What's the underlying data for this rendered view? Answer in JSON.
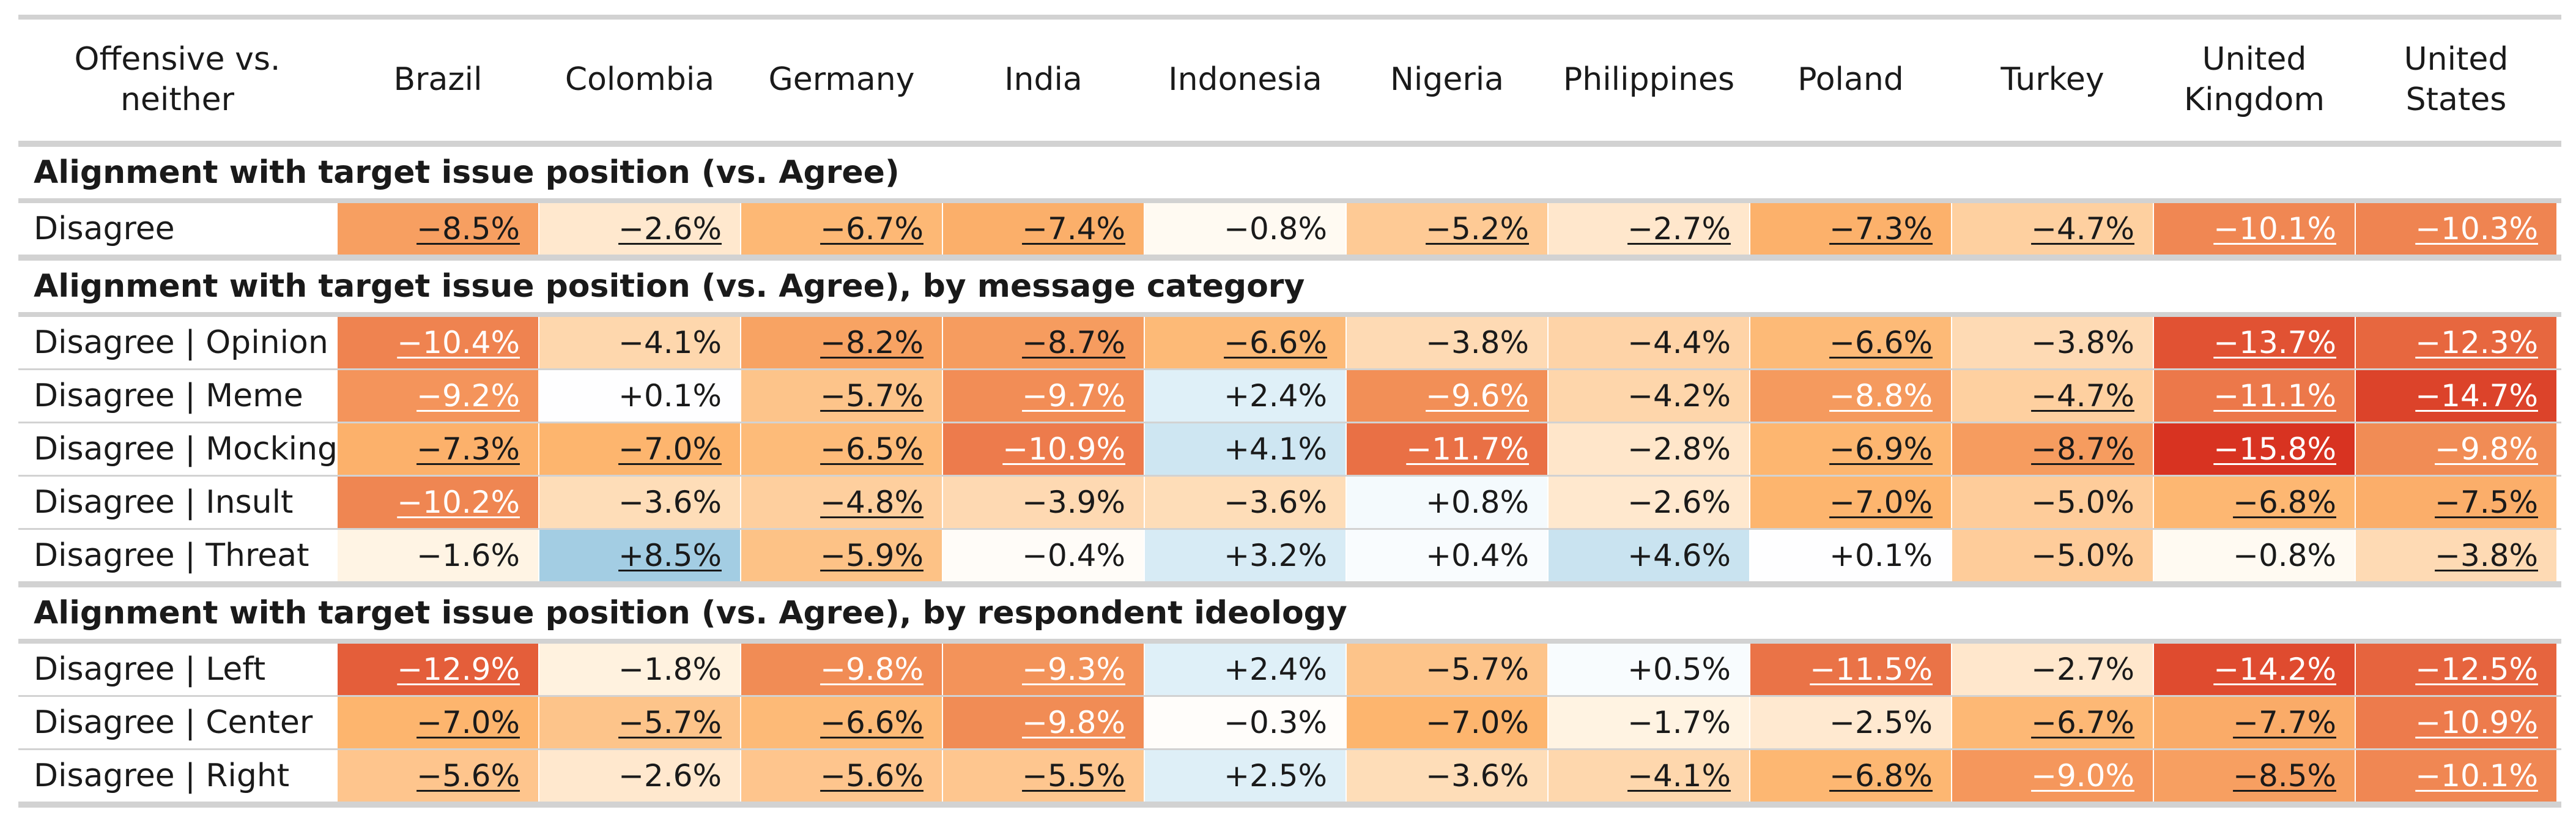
{
  "chart_data": {
    "type": "table",
    "corner_header": "Offensive vs. neither",
    "columns": [
      "Brazil",
      "Colombia",
      "Germany",
      "India",
      "Indonesia",
      "Nigeria",
      "Philippines",
      "Poland",
      "Turkey",
      "United Kingdom",
      "United States"
    ],
    "sections": [
      {
        "title": "Alignment with target issue position (vs. Agree)",
        "rows": [
          {
            "label": "Disagree",
            "values": [
              -8.5,
              -2.6,
              -6.7,
              -7.4,
              -0.8,
              -5.2,
              -2.7,
              -7.3,
              -4.7,
              -10.1,
              -10.3
            ],
            "display": [
              "−8.5%",
              "−2.6%",
              "−6.7%",
              "−7.4%",
              "−0.8%",
              "−5.2%",
              "−2.7%",
              "−7.3%",
              "−4.7%",
              "−10.1%",
              "−10.3%"
            ],
            "significant": [
              true,
              true,
              true,
              true,
              false,
              true,
              true,
              true,
              true,
              true,
              true
            ]
          }
        ]
      },
      {
        "title": "Alignment with target issue position (vs. Agree), by message category",
        "rows": [
          {
            "label": "Disagree | Opinion",
            "values": [
              -10.4,
              -4.1,
              -8.2,
              -8.7,
              -6.6,
              -3.8,
              -4.4,
              -6.6,
              -3.8,
              -13.7,
              -12.3
            ],
            "display": [
              "−10.4%",
              "−4.1%",
              "−8.2%",
              "−8.7%",
              "−6.6%",
              "−3.8%",
              "−4.4%",
              "−6.6%",
              "−3.8%",
              "−13.7%",
              "−12.3%"
            ],
            "significant": [
              true,
              false,
              true,
              true,
              true,
              false,
              false,
              true,
              false,
              true,
              true
            ]
          },
          {
            "label": "Disagree | Meme",
            "values": [
              -9.2,
              0.1,
              -5.7,
              -9.7,
              2.4,
              -9.6,
              -4.2,
              -8.8,
              -4.7,
              -11.1,
              -14.7
            ],
            "display": [
              "−9.2%",
              "+0.1%",
              "−5.7%",
              "−9.7%",
              "+2.4%",
              "−9.6%",
              "−4.2%",
              "−8.8%",
              "−4.7%",
              "−11.1%",
              "−14.7%"
            ],
            "significant": [
              true,
              false,
              true,
              true,
              false,
              true,
              false,
              true,
              true,
              true,
              true
            ]
          },
          {
            "label": "Disagree | Mocking",
            "values": [
              -7.3,
              -7.0,
              -6.5,
              -10.9,
              4.1,
              -11.7,
              -2.8,
              -6.9,
              -8.7,
              -15.8,
              -9.8
            ],
            "display": [
              "−7.3%",
              "−7.0%",
              "−6.5%",
              "−10.9%",
              "+4.1%",
              "−11.7%",
              "−2.8%",
              "−6.9%",
              "−8.7%",
              "−15.8%",
              "−9.8%"
            ],
            "significant": [
              true,
              true,
              true,
              true,
              false,
              true,
              false,
              true,
              true,
              true,
              true
            ]
          },
          {
            "label": "Disagree | Insult",
            "values": [
              -10.2,
              -3.6,
              -4.8,
              -3.9,
              -3.6,
              0.8,
              -2.6,
              -7.0,
              -5.0,
              -6.8,
              -7.5
            ],
            "display": [
              "−10.2%",
              "−3.6%",
              "−4.8%",
              "−3.9%",
              "−3.6%",
              "+0.8%",
              "−2.6%",
              "−7.0%",
              "−5.0%",
              "−6.8%",
              "−7.5%"
            ],
            "significant": [
              true,
              false,
              true,
              false,
              false,
              false,
              false,
              true,
              false,
              true,
              true
            ]
          },
          {
            "label": "Disagree | Threat",
            "values": [
              -1.6,
              8.5,
              -5.9,
              -0.4,
              3.2,
              0.4,
              4.6,
              0.1,
              -5.0,
              -0.8,
              -3.8
            ],
            "display": [
              "−1.6%",
              "+8.5%",
              "−5.9%",
              "−0.4%",
              "+3.2%",
              "+0.4%",
              "+4.6%",
              "+0.1%",
              "−5.0%",
              "−0.8%",
              "−3.8%"
            ],
            "significant": [
              false,
              true,
              true,
              false,
              false,
              false,
              false,
              false,
              false,
              false,
              true
            ]
          }
        ]
      },
      {
        "title": "Alignment with target issue position (vs. Agree), by respondent ideology",
        "rows": [
          {
            "label": "Disagree | Left",
            "values": [
              -12.9,
              -1.8,
              -9.8,
              -9.3,
              2.4,
              -5.7,
              0.5,
              -11.5,
              -2.7,
              -14.2,
              -12.5
            ],
            "display": [
              "−12.9%",
              "−1.8%",
              "−9.8%",
              "−9.3%",
              "+2.4%",
              "−5.7%",
              "+0.5%",
              "−11.5%",
              "−2.7%",
              "−14.2%",
              "−12.5%"
            ],
            "significant": [
              true,
              false,
              true,
              true,
              false,
              false,
              false,
              true,
              false,
              true,
              true
            ]
          },
          {
            "label": "Disagree | Center",
            "values": [
              -7.0,
              -5.7,
              -6.6,
              -9.8,
              -0.3,
              -7.0,
              -1.7,
              -2.5,
              -6.7,
              -7.7,
              -10.9
            ],
            "display": [
              "−7.0%",
              "−5.7%",
              "−6.6%",
              "−9.8%",
              "−0.3%",
              "−7.0%",
              "−1.7%",
              "−2.5%",
              "−6.7%",
              "−7.7%",
              "−10.9%"
            ],
            "significant": [
              true,
              true,
              true,
              true,
              false,
              false,
              false,
              false,
              true,
              true,
              true
            ]
          },
          {
            "label": "Disagree | Right",
            "values": [
              -5.6,
              -2.6,
              -5.6,
              -5.5,
              2.5,
              -3.6,
              -4.1,
              -6.8,
              -9.0,
              -8.5,
              -10.1
            ],
            "display": [
              "−5.6%",
              "−2.6%",
              "−5.6%",
              "−5.5%",
              "+2.5%",
              "−3.6%",
              "−4.1%",
              "−6.8%",
              "−9.0%",
              "−8.5%",
              "−10.1%"
            ],
            "significant": [
              true,
              false,
              true,
              true,
              false,
              false,
              true,
              true,
              true,
              true,
              true
            ]
          }
        ]
      }
    ],
    "color_scale": {
      "negative_light": "#fff5e6",
      "negative_mid": "#fdb56e",
      "negative_dark": "#d7301f",
      "zero": "#ffffff",
      "positive_light": "#e3f2f9",
      "positive_dark": "#9ecae1"
    }
  }
}
